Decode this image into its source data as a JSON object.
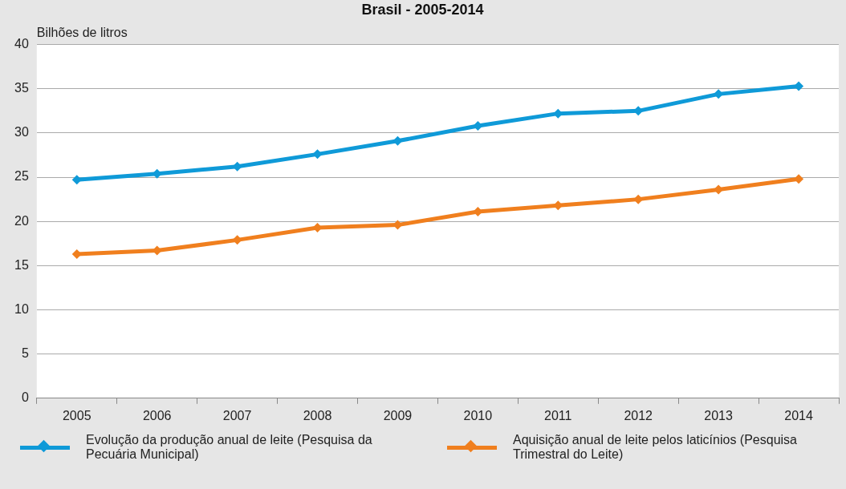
{
  "chart_data": {
    "type": "line",
    "title": "Brasil - 2005-2014",
    "ylabel": "Bilhões de litros",
    "categories": [
      "2005",
      "2006",
      "2007",
      "2008",
      "2009",
      "2010",
      "2011",
      "2012",
      "2013",
      "2014"
    ],
    "series": [
      {
        "name": "Evolução da produção anual de leite (Pesquisa da Pecuária Municipal)",
        "color": "#0f9ad8",
        "values": [
          24.7,
          25.4,
          26.2,
          27.6,
          29.1,
          30.8,
          32.2,
          32.5,
          34.4,
          35.3
        ]
      },
      {
        "name": "Aquisição anual de leite pelos laticínios (Pesquisa Trimestral do Leite)",
        "color": "#f07f1e",
        "values": [
          16.3,
          16.7,
          17.9,
          19.3,
          19.6,
          21.1,
          21.8,
          22.5,
          23.6,
          24.8
        ]
      }
    ],
    "ylim": [
      0,
      40
    ],
    "yticks": [
      0,
      5,
      10,
      15,
      20,
      25,
      30,
      35,
      40
    ],
    "grid": "y",
    "legend": "bottom",
    "marker": "diamond",
    "line_style": "solid"
  }
}
